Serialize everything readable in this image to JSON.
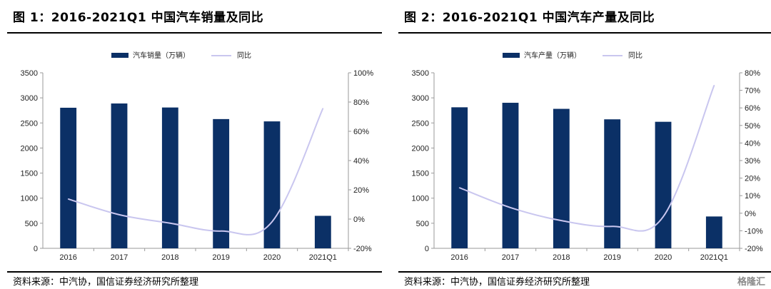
{
  "panels": [
    {
      "title": "图 1：2016-2021Q1 中国汽车销量及同比",
      "source": "资料来源：中汽协，国信证券经济研究所整理"
    },
    {
      "title": "图 2：2016-2021Q1 中国汽车产量及同比",
      "source": "资料来源：中汽协，国信证券经济研究所整理"
    }
  ],
  "watermark": "格隆汇",
  "colors": {
    "bar": "#0b3066",
    "line": "#c9c6ef",
    "axis": "#9a9a9a",
    "text": "#222222"
  },
  "chart_data": [
    {
      "type": "bar",
      "categories": [
        "2016",
        "2017",
        "2018",
        "2019",
        "2020",
        "2021Q1"
      ],
      "series": [
        {
          "name": "汽车销量（万辆）",
          "type": "bar",
          "axis": "left",
          "values": [
            2803,
            2888,
            2808,
            2577,
            2531,
            648
          ]
        },
        {
          "name": "同比",
          "type": "line",
          "axis": "right",
          "values": [
            13.7,
            3.0,
            -2.8,
            -8.2,
            -1.9,
            75.6
          ]
        }
      ],
      "ylim": [
        0,
        3500
      ],
      "yticks": [
        0,
        500,
        1000,
        1500,
        2000,
        2500,
        3000,
        3500
      ],
      "y2lim": [
        -20,
        100
      ],
      "y2ticks": [
        -20,
        0,
        20,
        40,
        60,
        80,
        100
      ],
      "y2tick_suffix": "%",
      "legend_position": "top-center"
    },
    {
      "type": "bar",
      "categories": [
        "2016",
        "2017",
        "2018",
        "2019",
        "2020",
        "2021Q1"
      ],
      "series": [
        {
          "name": "汽车产量（万辆）",
          "type": "bar",
          "axis": "left",
          "values": [
            2812,
            2902,
            2781,
            2572,
            2523,
            635
          ]
        },
        {
          "name": "同比",
          "type": "line",
          "axis": "right",
          "values": [
            14.5,
            3.2,
            -4.2,
            -7.5,
            -2.0,
            72.8
          ]
        }
      ],
      "ylim": [
        0,
        3500
      ],
      "yticks": [
        0,
        500,
        1000,
        1500,
        2000,
        2500,
        3000,
        3500
      ],
      "y2lim": [
        -20,
        80
      ],
      "y2ticks": [
        -20,
        -10,
        0,
        10,
        20,
        30,
        40,
        50,
        60,
        70,
        80
      ],
      "y2tick_suffix": "%",
      "legend_position": "top-center"
    }
  ]
}
